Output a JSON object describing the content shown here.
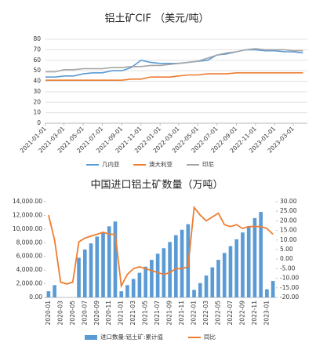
{
  "chart_data": [
    {
      "type": "line",
      "title": "铝土矿CIF （美元/吨）",
      "x": [
        "2021-01-01",
        "2021-02-01",
        "2021-03-01",
        "2021-04-01",
        "2021-05-01",
        "2021-06-01",
        "2021-07-01",
        "2021-08-01",
        "2021-09-01",
        "2021-10-01",
        "2021-11-01",
        "2021-12-01",
        "2022-01-01",
        "2022-02-01",
        "2022-03-01",
        "2022-04-01",
        "2022-05-01",
        "2022-06-01",
        "2022-07-01",
        "2022-08-01",
        "2022-09-01",
        "2022-10-01",
        "2022-11-01",
        "2022-12-01",
        "2023-01-01",
        "2023-02-01",
        "2023-03-01",
        "2023-04-01"
      ],
      "series": [
        {
          "name": "几内亚",
          "color": "#5b9bd5",
          "values": [
            44,
            44,
            45,
            45,
            47,
            48,
            48,
            50,
            50,
            53,
            60,
            58,
            57,
            57,
            57,
            58,
            59,
            60,
            65,
            66,
            68,
            70,
            70,
            69,
            69,
            68,
            68,
            67
          ]
        },
        {
          "name": "澳大利亚",
          "color": "#ed7d31",
          "values": [
            41,
            41,
            41,
            41,
            41,
            41,
            41,
            41,
            41,
            42,
            42,
            44,
            44,
            44,
            45,
            46,
            46,
            47,
            47,
            47,
            48,
            48,
            48,
            48,
            48,
            48,
            48,
            48
          ]
        },
        {
          "name": "印尼",
          "color": "#a5a5a5",
          "values": [
            49,
            49,
            51,
            51,
            52,
            52,
            52,
            53,
            53,
            54,
            54,
            55,
            55,
            56,
            57,
            58,
            59,
            62,
            65,
            67,
            68,
            70,
            71,
            70,
            70,
            70,
            69,
            69
          ]
        }
      ],
      "xlim": [
        "2021-01-01",
        "2023-04-15"
      ],
      "xticks": [
        "2021-01-01",
        "2021-03-01",
        "2021-05-01",
        "2021-07-01",
        "2021-09-01",
        "2021-11-01",
        "2022-01-01",
        "2022-03-01",
        "2022-05-01",
        "2022-07-01",
        "2022-09-01",
        "2022-11-01",
        "2023-01-01",
        "2023-03-01"
      ],
      "ylim": [
        0,
        80
      ],
      "yticks": [
        0,
        10,
        20,
        30,
        40,
        50,
        60,
        70,
        80
      ],
      "grid": true
    },
    {
      "type": "bar-line",
      "title": "中国进口铝土矿数量（万吨）",
      "categories": [
        "2020-01",
        null,
        "2020-03",
        null,
        "2020-05",
        null,
        "2020-07",
        null,
        "2020-09",
        null,
        "2020-11",
        null,
        "2021-01",
        null,
        "2021-03",
        null,
        "2021-05",
        null,
        "2021-07",
        null,
        "2021-09",
        null,
        "2021-11",
        null,
        "2022-01",
        null,
        "2022-03",
        null,
        "2022-05",
        null,
        "2022-07",
        null,
        "2022-09",
        null,
        "2022-11",
        null,
        "2023-01",
        null
      ],
      "series": [
        {
          "name": "进口数量:铝土矿:累计值",
          "color": "#5b9bd5",
          "axis": "y",
          "values": [
            900,
            1800,
            null,
            null,
            null,
            5800,
            7000,
            7900,
            8900,
            9500,
            10400,
            11100,
            900,
            1800,
            2700,
            3600,
            4500,
            5500,
            6400,
            7200,
            8100,
            9100,
            9900,
            10700,
            1100,
            2100,
            3200,
            4400,
            5500,
            6500,
            7500,
            8500,
            9500,
            10400,
            11600,
            12500,
            1200,
            2400
          ]
        },
        {
          "name": "同比",
          "color": "#ed7d31",
          "axis": "y2",
          "values": [
            23,
            10,
            -12,
            -13,
            -12,
            9,
            11,
            12,
            13,
            14,
            13,
            13,
            -14,
            -8,
            -5,
            -4,
            -5,
            -6,
            -7,
            -8,
            -7,
            -5,
            -5,
            -4,
            27,
            23,
            20,
            22,
            24,
            18,
            17,
            18,
            16,
            17,
            17,
            17,
            16,
            13
          ]
        }
      ],
      "ylim": [
        0,
        14000
      ],
      "yticks": [
        {
          "value": 0,
          "label": "0.00"
        },
        {
          "value": 2000,
          "label": "2,000.00"
        },
        {
          "value": 4000,
          "label": "4,000.00"
        },
        {
          "value": 6000,
          "label": "6,000.00"
        },
        {
          "value": 8000,
          "label": "8,000.00"
        },
        {
          "value": 10000,
          "label": "10,000.00"
        },
        {
          "value": 12000,
          "label": "12,000.00"
        },
        {
          "value": 14000,
          "label": "14,000.00"
        }
      ],
      "y2lim": [
        -20,
        30
      ],
      "y2ticks": [
        {
          "value": -20,
          "label": "-20.00"
        },
        {
          "value": -15,
          "label": "-15.00"
        },
        {
          "value": -10,
          "label": "-10.00"
        },
        {
          "value": -5,
          "label": "-5.00"
        },
        {
          "value": 0,
          "label": "0.00"
        },
        {
          "value": 5,
          "label": "5.00"
        },
        {
          "value": 10,
          "label": "10.00"
        },
        {
          "value": 15,
          "label": "15.00"
        },
        {
          "value": 20,
          "label": "20.00"
        },
        {
          "value": 25,
          "label": "25.00"
        },
        {
          "value": 30,
          "label": "30.00"
        }
      ],
      "grid": false
    }
  ]
}
